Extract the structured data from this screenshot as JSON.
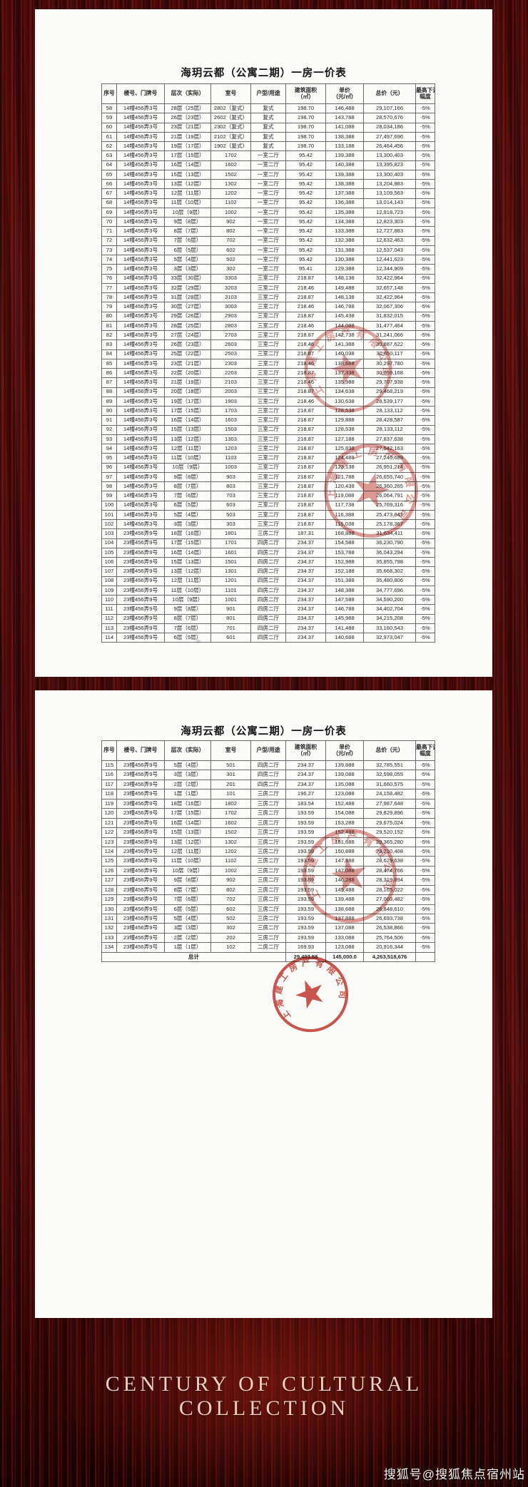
{
  "seal": {
    "company": "上海建工房产有限公司"
  },
  "watermark": {
    "text": "搜狐号@搜狐焦点宿州站"
  },
  "footer": {
    "line1": "CENTURY OF CULTURAL",
    "line2": "COLLECTION"
  },
  "colors": {
    "seal_red": "#c23a30",
    "paper": "#fbfbfa",
    "background_red": "#4a0c0c",
    "footer_text": "#eed0bf"
  },
  "pages": [
    {
      "title": "海玥云都（公寓二期）一房一价表",
      "columns": [
        {
          "t": "序号"
        },
        {
          "t": "楼号、门牌号"
        },
        {
          "t": "层次（实际）"
        },
        {
          "t": "室号"
        },
        {
          "t": "户型/用途"
        },
        {
          "t": "建筑面积",
          "s": "（㎡）"
        },
        {
          "t": "单价",
          "s": "（元/㎡）"
        },
        {
          "t": "总价（元）"
        },
        {
          "t": "最高下调",
          "s": "幅度"
        }
      ],
      "rows": [
        [
          "58",
          "14幢456弄3号",
          "28层（25层）",
          "2802（复式）",
          "复式",
          "198.70",
          "146,488",
          "29,107,166",
          "-5%"
        ],
        [
          "59",
          "14幢456弄3号",
          "26层（23层）",
          "2602（复式）",
          "复式",
          "198.70",
          "143,788",
          "28,570,676",
          "-5%"
        ],
        [
          "60",
          "14幢456弄3号",
          "23层（21层）",
          "2302（复式）",
          "复式",
          "198.70",
          "141,088",
          "28,034,186",
          "-5%"
        ],
        [
          "61",
          "14幢456弄3号",
          "21层（19层）",
          "2102（复式）",
          "复式",
          "198.70",
          "138,388",
          "27,497,696",
          "-5%"
        ],
        [
          "62",
          "14幢456弄3号",
          "19层（17层）",
          "1902（复式）",
          "复式",
          "198.70",
          "133,188",
          "26,464,456",
          "-5%"
        ],
        [
          "63",
          "14幢456弄3号",
          "17层（15层）",
          "1702",
          "一室二厅",
          "95.42",
          "139,388",
          "13,300,403",
          "-5%"
        ],
        [
          "64",
          "14幢456弄3号",
          "16层（14层）",
          "1602",
          "一室二厅",
          "95.42",
          "140,388",
          "13,395,823",
          "-5%"
        ],
        [
          "65",
          "14幢456弄3号",
          "15层（13层）",
          "1502",
          "一室二厅",
          "95.42",
          "139,388",
          "13,300,403",
          "-5%"
        ],
        [
          "66",
          "14幢456弄3号",
          "13层（12层）",
          "1302",
          "一室二厅",
          "95.42",
          "138,388",
          "13,204,983",
          "-5%"
        ],
        [
          "67",
          "14幢456弄3号",
          "12层（11层）",
          "1202",
          "一室二厅",
          "95.42",
          "137,388",
          "13,109,563",
          "-5%"
        ],
        [
          "68",
          "14幢456弄3号",
          "11层（10层）",
          "1102",
          "一室二厅",
          "95.42",
          "136,388",
          "13,014,143",
          "-5%"
        ],
        [
          "69",
          "14幢456弄3号",
          "10层（9层）",
          "1002",
          "一室二厅",
          "95.42",
          "135,388",
          "12,918,723",
          "-5%"
        ],
        [
          "70",
          "14幢456弄3号",
          "9层（8层）",
          "902",
          "一室二厅",
          "95.42",
          "134,388",
          "12,823,303",
          "-5%"
        ],
        [
          "71",
          "14幢456弄3号",
          "8层（7层）",
          "802",
          "一室二厅",
          "95.42",
          "133,388",
          "12,727,883",
          "-5%"
        ],
        [
          "72",
          "14幢456弄3号",
          "7层（6层）",
          "702",
          "一室二厅",
          "95.42",
          "132,388",
          "12,632,463",
          "-5%"
        ],
        [
          "73",
          "14幢456弄3号",
          "6层（5层）",
          "602",
          "一室二厅",
          "95.42",
          "131,388",
          "12,537,043",
          "-5%"
        ],
        [
          "74",
          "14幢456弄3号",
          "5层（4层）",
          "502",
          "一室二厅",
          "95.42",
          "130,388",
          "12,441,623",
          "-5%"
        ],
        [
          "75",
          "14幢456弄3号",
          "3层（3层）",
          "302",
          "一室二厅",
          "95.41",
          "129,388",
          "12,344,909",
          "-5%"
        ],
        [
          "76",
          "14幢456弄3号",
          "33层（30层）",
          "3303",
          "三室二厅",
          "218.87",
          "148,138",
          "32,422,964",
          "-5%"
        ],
        [
          "77",
          "14幢456弄3号",
          "32层（29层）",
          "3203",
          "三室二厅",
          "218.46",
          "149,488",
          "32,657,148",
          "-5%"
        ],
        [
          "78",
          "14幢456弄3号",
          "31层（28层）",
          "3103",
          "三室二厅",
          "218.87",
          "148,138",
          "32,422,964",
          "-5%"
        ],
        [
          "79",
          "14幢456弄3号",
          "30层（27层）",
          "3003",
          "三室二厅",
          "218.46",
          "146,788",
          "32,067,306",
          "-5%"
        ],
        [
          "80",
          "14幢456弄3号",
          "29层（26层）",
          "2903",
          "三室二厅",
          "218.87",
          "145,438",
          "31,832,015",
          "-5%"
        ],
        [
          "81",
          "14幢456弄3号",
          "28层（25层）",
          "2803",
          "三室二厅",
          "218.46",
          "144,088",
          "31,477,464",
          "-5%"
        ],
        [
          "82",
          "14幢456弄3号",
          "27层（24层）",
          "2703",
          "三室二厅",
          "218.87",
          "142,738",
          "31,241,066",
          "-5%"
        ],
        [
          "83",
          "14幢456弄3号",
          "26层（23层）",
          "2603",
          "三室二厅",
          "218.46",
          "141,388",
          "30,887,622",
          "-5%"
        ],
        [
          "84",
          "14幢456弄3号",
          "25层（22层）",
          "2503",
          "三室二厅",
          "218.87",
          "140,038",
          "30,650,117",
          "-5%"
        ],
        [
          "85",
          "14幢456弄3号",
          "23层（21层）",
          "2303",
          "三室二厅",
          "218.46",
          "138,688",
          "30,297,780",
          "-5%"
        ],
        [
          "86",
          "14幢456弄3号",
          "22层（20层）",
          "2203",
          "三室二厅",
          "218.87",
          "137,338",
          "30,059,168",
          "-5%"
        ],
        [
          "87",
          "14幢456弄3号",
          "21层（19层）",
          "2103",
          "三室二厅",
          "218.46",
          "135,988",
          "29,707,938",
          "-5%"
        ],
        [
          "88",
          "14幢456弄3号",
          "20层（18层）",
          "2003",
          "三室二厅",
          "218.87",
          "134,638",
          "29,468,219",
          "-5%"
        ],
        [
          "89",
          "14幢456弄3号",
          "19层（17层）",
          "1903",
          "三室二厅",
          "218.46",
          "130,638",
          "28,539,177",
          "-5%"
        ],
        [
          "90",
          "14幢456弄3号",
          "17层（15层）",
          "1703",
          "三室二厅",
          "218.87",
          "128,538",
          "28,133,112",
          "-5%"
        ],
        [
          "91",
          "14幢456弄3号",
          "16层（14层）",
          "1603",
          "三室二厅",
          "218.87",
          "129,888",
          "28,428,587",
          "-5%"
        ],
        [
          "92",
          "14幢456弄3号",
          "15层（13层）",
          "1503",
          "三室二厅",
          "218.87",
          "128,538",
          "28,133,112",
          "-5%"
        ],
        [
          "93",
          "14幢456弄3号",
          "13层（12层）",
          "1303",
          "三室二厅",
          "218.87",
          "127,188",
          "27,837,638",
          "-5%"
        ],
        [
          "94",
          "14幢456弄3号",
          "12层（11层）",
          "1203",
          "三室二厅",
          "218.87",
          "125,838",
          "27,542,163",
          "-5%"
        ],
        [
          "95",
          "14幢456弄3号",
          "11层（10层）",
          "1103",
          "三室二厅",
          "218.87",
          "124,488",
          "27,246,689",
          "-5%"
        ],
        [
          "96",
          "14幢456弄3号",
          "10层（9层）",
          "1003",
          "三室二厅",
          "218.87",
          "123,138",
          "26,951,214",
          "-5%"
        ],
        [
          "97",
          "14幢456弄3号",
          "9层（8层）",
          "903",
          "三室二厅",
          "218.87",
          "121,788",
          "26,655,740",
          "-5%"
        ],
        [
          "98",
          "14幢456弄3号",
          "8层（7层）",
          "803",
          "三室二厅",
          "218.87",
          "120,438",
          "26,360,265",
          "-5%"
        ],
        [
          "99",
          "14幢456弄3号",
          "7层（6层）",
          "703",
          "三室二厅",
          "218.87",
          "119,088",
          "26,064,791",
          "-5%"
        ],
        [
          "100",
          "14幢456弄3号",
          "6层（5层）",
          "603",
          "三室二厅",
          "218.87",
          "117,738",
          "25,769,316",
          "-5%"
        ],
        [
          "101",
          "14幢456弄3号",
          "5层（4层）",
          "503",
          "三室二厅",
          "218.87",
          "116,388",
          "25,473,842",
          "-5%"
        ],
        [
          "102",
          "14幢456弄3号",
          "3层（3层）",
          "303",
          "三室二厅",
          "218.87",
          "115,038",
          "25,178,367",
          "-5%"
        ],
        [
          "103",
          "23幢456弄9号",
          "18层（16层）",
          "1801",
          "三房二厅",
          "187.31",
          "168,888",
          "31,634,411",
          "-5%"
        ],
        [
          "104",
          "23幢456弄9号",
          "17层（15层）",
          "1701",
          "四房二厅",
          "234.37",
          "154,588",
          "36,230,790",
          "-5%"
        ],
        [
          "105",
          "23幢456弄9号",
          "16层（14层）",
          "1601",
          "四房二厅",
          "234.37",
          "153,788",
          "36,043,294",
          "-5%"
        ],
        [
          "106",
          "23幢456弄9号",
          "15层（13层）",
          "1501",
          "四房二厅",
          "234.37",
          "152,988",
          "35,855,798",
          "-5%"
        ],
        [
          "107",
          "23幢456弄9号",
          "13层（12层）",
          "1301",
          "四房二厅",
          "234.37",
          "152,188",
          "35,668,302",
          "-5%"
        ],
        [
          "108",
          "23幢456弄9号",
          "12层（11层）",
          "1201",
          "四房二厅",
          "234.37",
          "151,388",
          "35,480,806",
          "-5%"
        ],
        [
          "109",
          "23幢456弄9号",
          "11层（10层）",
          "1101",
          "四房二厅",
          "234.37",
          "148,388",
          "34,777,696",
          "-5%"
        ],
        [
          "110",
          "23幢456弄9号",
          "10层（9层）",
          "1001",
          "四房二厅",
          "234.37",
          "147,588",
          "34,590,200",
          "-5%"
        ],
        [
          "111",
          "23幢456弄9号",
          "9层（8层）",
          "901",
          "四房二厅",
          "234.37",
          "146,788",
          "34,402,704",
          "-5%"
        ],
        [
          "112",
          "23幢456弄9号",
          "8层（7层）",
          "801",
          "四房二厅",
          "234.37",
          "145,988",
          "34,215,208",
          "-5%"
        ],
        [
          "113",
          "23幢456弄9号",
          "7层（6层）",
          "701",
          "四房二厅",
          "234.37",
          "141,488",
          "33,160,543",
          "-5%"
        ],
        [
          "114",
          "23幢456弄9号",
          "6层（5层）",
          "601",
          "四房二厅",
          "234.37",
          "140,688",
          "32,973,047",
          "-5%"
        ]
      ]
    },
    {
      "title": "海玥云都（公寓二期）一房一价表",
      "columns": [
        {
          "t": "序号"
        },
        {
          "t": "楼号、门牌号"
        },
        {
          "t": "层次（实际）"
        },
        {
          "t": "室号"
        },
        {
          "t": "户型/用途"
        },
        {
          "t": "建筑面积",
          "s": "（㎡）"
        },
        {
          "t": "单价",
          "s": "（元/㎡）"
        },
        {
          "t": "总价（元）"
        },
        {
          "t": "最高下调",
          "s": "幅度"
        }
      ],
      "rows": [
        [
          "115",
          "23幢456弄9号",
          "5层（4层）",
          "501",
          "四房二厅",
          "234.37",
          "139,888",
          "32,785,551",
          "-5%"
        ],
        [
          "116",
          "23幢456弄9号",
          "3层（3层）",
          "301",
          "四房二厅",
          "234.37",
          "139,088",
          "32,598,055",
          "-5%"
        ],
        [
          "117",
          "23幢456弄9号",
          "2层（2层）",
          "201",
          "四房二厅",
          "234.37",
          "135,088",
          "31,660,575",
          "-5%"
        ],
        [
          "118",
          "23幢456弄9号",
          "1层（1层）",
          "101",
          "三房二厅",
          "196.27",
          "123,088",
          "24,158,482",
          "-5%"
        ],
        [
          "119",
          "23幢456弄9号",
          "18层（16层）",
          "1802",
          "三房二厅",
          "183.54",
          "152,488",
          "27,987,648",
          "-5%"
        ],
        [
          "120",
          "23幢456弄9号",
          "17层（15层）",
          "1702",
          "三房二厅",
          "193.59",
          "154,088",
          "29,829,896",
          "-5%"
        ],
        [
          "121",
          "23幢456弄9号",
          "16层（14层）",
          "1602",
          "三房二厅",
          "193.59",
          "153,288",
          "29,675,024",
          "-5%"
        ],
        [
          "122",
          "23幢456弄9号",
          "15层（13层）",
          "1502",
          "三房二厅",
          "193.59",
          "152,488",
          "29,520,152",
          "-5%"
        ],
        [
          "123",
          "23幢456弄9号",
          "13层（12层）",
          "1302",
          "三房二厅",
          "193.59",
          "151,688",
          "29,365,280",
          "-5%"
        ],
        [
          "124",
          "23幢456弄9号",
          "12层（11层）",
          "1202",
          "三房二厅",
          "193.59",
          "150,888",
          "29,210,408",
          "-5%"
        ],
        [
          "125",
          "23幢456弄9号",
          "11层（10层）",
          "1102",
          "三房二厅",
          "193.59",
          "147,888",
          "28,629,638",
          "-5%"
        ],
        [
          "126",
          "23幢456弄9号",
          "10层（9层）",
          "1002",
          "三房二厅",
          "193.59",
          "147,088",
          "28,474,766",
          "-5%"
        ],
        [
          "127",
          "23幢456弄9号",
          "9层（8层）",
          "902",
          "三房二厅",
          "193.59",
          "146,288",
          "28,319,894",
          "-5%"
        ],
        [
          "128",
          "23幢456弄9号",
          "8层（7层）",
          "802",
          "三房二厅",
          "193.59",
          "145,488",
          "28,165,022",
          "-5%"
        ],
        [
          "129",
          "23幢456弄9号",
          "7层（6层）",
          "702",
          "三房二厅",
          "193.59",
          "139,488",
          "27,003,482",
          "-5%"
        ],
        [
          "130",
          "23幢456弄9号",
          "6层（5层）",
          "602",
          "三房二厅",
          "193.59",
          "138,688",
          "26,848,610",
          "-5%"
        ],
        [
          "131",
          "23幢456弄9号",
          "5层（4层）",
          "502",
          "三房二厅",
          "193.59",
          "137,888",
          "26,693,738",
          "-5%"
        ],
        [
          "132",
          "23幢456弄9号",
          "3层（3层）",
          "302",
          "三房二厅",
          "193.59",
          "137,088",
          "26,538,866",
          "-5%"
        ],
        [
          "133",
          "23幢456弄9号",
          "2层（2层）",
          "202",
          "三房二厅",
          "193.59",
          "133,088",
          "25,764,506",
          "-5%"
        ],
        [
          "134",
          "23幢456弄9号",
          "1层（1层）",
          "102",
          "二房二厅",
          "169.93",
          "123,088",
          "20,916,344",
          "-5%"
        ]
      ],
      "total_row": {
        "label": "总计",
        "area": "29,403.58",
        "unit": "145,000.0",
        "total": "4,263,518,676"
      }
    }
  ]
}
